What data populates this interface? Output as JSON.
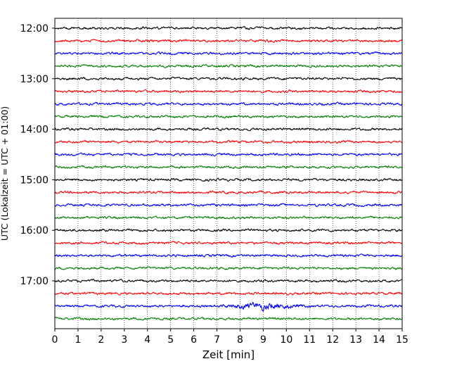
{
  "chart_data": {
    "type": "line",
    "title": "",
    "xlabel": "Zeit  [min]",
    "ylabel": "UTC (Lokalzeit = UTC + 01:00)",
    "xlim": [
      0,
      15
    ],
    "xticks": [
      0,
      1,
      2,
      3,
      4,
      5,
      6,
      7,
      8,
      9,
      10,
      11,
      12,
      13,
      14,
      15
    ],
    "grid": "vertical dotted",
    "traces_start": "12:00",
    "trace_interval_min": 15,
    "ytick_labels": [
      "12:00",
      "13:00",
      "14:00",
      "15:00",
      "16:00",
      "17:00"
    ],
    "trace_colors": [
      "#000000",
      "#ff0000",
      "#0000ff",
      "#008000"
    ],
    "series": [
      {
        "start": "12:00",
        "color": "#000000"
      },
      {
        "start": "12:15",
        "color": "#ff0000"
      },
      {
        "start": "12:30",
        "color": "#0000ff"
      },
      {
        "start": "12:45",
        "color": "#008000"
      },
      {
        "start": "13:00",
        "color": "#000000"
      },
      {
        "start": "13:15",
        "color": "#ff0000"
      },
      {
        "start": "13:30",
        "color": "#0000ff"
      },
      {
        "start": "13:45",
        "color": "#008000"
      },
      {
        "start": "14:00",
        "color": "#000000"
      },
      {
        "start": "14:15",
        "color": "#ff0000"
      },
      {
        "start": "14:30",
        "color": "#0000ff"
      },
      {
        "start": "14:45",
        "color": "#008000"
      },
      {
        "start": "15:00",
        "color": "#000000"
      },
      {
        "start": "15:15",
        "color": "#ff0000"
      },
      {
        "start": "15:30",
        "color": "#0000ff"
      },
      {
        "start": "15:45",
        "color": "#008000"
      },
      {
        "start": "16:00",
        "color": "#000000"
      },
      {
        "start": "16:15",
        "color": "#ff0000"
      },
      {
        "start": "16:30",
        "color": "#0000ff"
      },
      {
        "start": "16:45",
        "color": "#008000"
      },
      {
        "start": "17:00",
        "color": "#000000"
      },
      {
        "start": "17:15",
        "color": "#ff0000"
      },
      {
        "start": "17:30",
        "color": "#0000ff",
        "event_window_min": [
          7,
          11
        ]
      },
      {
        "start": "17:45",
        "color": "#008000"
      }
    ]
  }
}
